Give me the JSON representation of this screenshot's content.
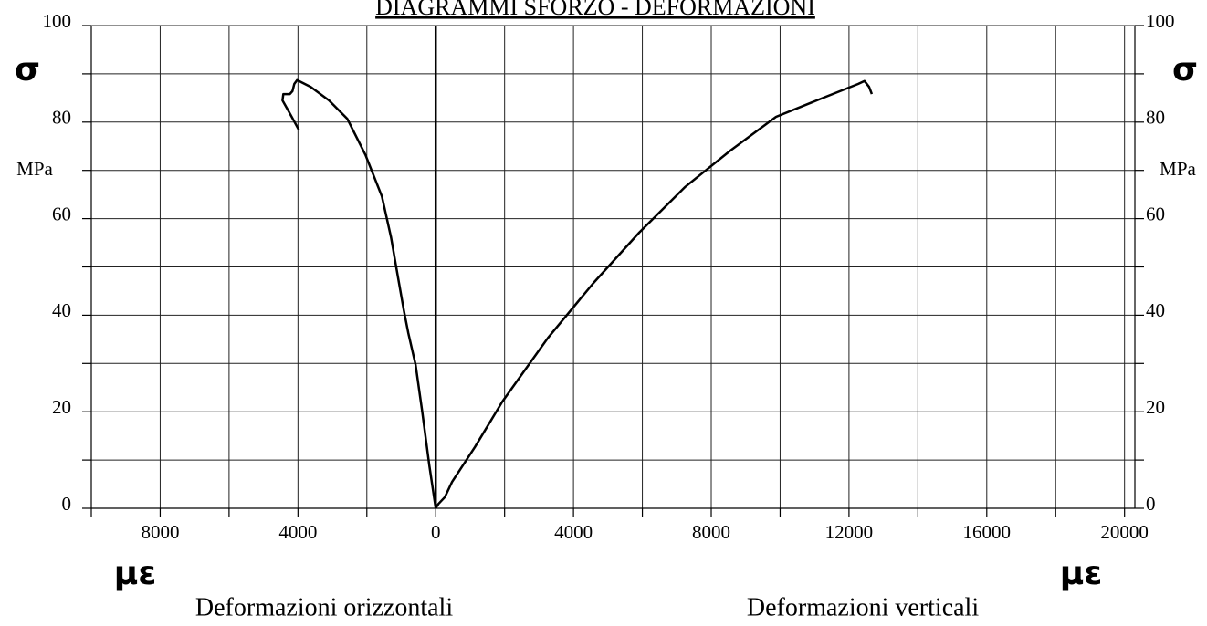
{
  "chart_data": {
    "type": "line",
    "title": "DIAGRAMMI  SFORZO - DEFORMAZIONI",
    "y_symbol": "σ",
    "y_unit": "MPa",
    "x_unit": "με",
    "series": [
      {
        "name": "Deformazioni orizzontali",
        "color": "#000000",
        "x": [
          0,
          -185,
          -397,
          -583,
          -795,
          -927,
          -1113,
          -1298,
          -1563,
          -2040,
          -2570,
          -3100,
          -3629,
          -4026,
          -4106,
          -4159,
          -4238,
          -4424,
          -4450,
          -4265,
          -3974
        ],
        "values": [
          0,
          8.9,
          20.2,
          29.7,
          36.3,
          41,
          48.6,
          56.1,
          64.6,
          73.2,
          80.7,
          84.5,
          87.3,
          88.7,
          87.9,
          86.4,
          85.8,
          85.8,
          84.5,
          82.2,
          78.4
        ]
      },
      {
        "name": "Deformazioni verticali",
        "color": "#000000",
        "x": [
          0,
          80,
          265,
          477,
          1139,
          1934,
          3258,
          4583,
          5907,
          7232,
          8556,
          9881,
          11205,
          12265,
          12450,
          12583,
          12662
        ],
        "values": [
          0,
          0.9,
          2.3,
          5.5,
          12.7,
          22.1,
          35.3,
          46.7,
          57.1,
          66.5,
          74.1,
          81.1,
          84.9,
          87.9,
          88.5,
          87.3,
          85.8
        ]
      }
    ],
    "xlim": [
      -10000,
      20300
    ],
    "xticks": [
      {
        "value": -8000,
        "label": "8000"
      },
      {
        "value": -4000,
        "label": "4000"
      },
      0,
      4000,
      8000,
      12000,
      16000,
      20000
    ],
    "xminorticks": [
      -10000,
      -6000,
      -2000,
      2000,
      6000,
      10000,
      14000,
      18000
    ],
    "ylim": [
      0,
      100
    ],
    "yticks": [
      0,
      20,
      40,
      60,
      80,
      100
    ],
    "yminorticks": [
      10,
      30,
      50,
      70,
      90
    ],
    "grid": true
  }
}
